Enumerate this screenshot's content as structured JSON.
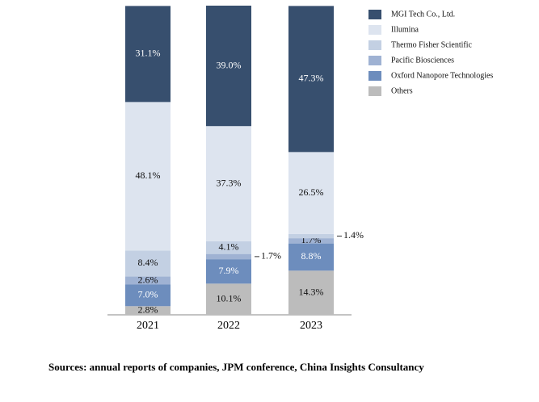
{
  "chart_data": {
    "type": "stacked_bar",
    "categories": [
      "2021",
      "2022",
      "2023"
    ],
    "series": [
      {
        "name": "MGI Tech Co., Ltd.",
        "color": "#374f6e",
        "label_color": "#ffffff",
        "values": [
          31.1,
          39.0,
          47.3
        ],
        "value_labels": [
          "31.1%",
          "39.0%",
          "47.3%"
        ]
      },
      {
        "name": "Illumina",
        "color": "#dde4ef",
        "label_color": "#111111",
        "values": [
          48.1,
          37.3,
          26.5
        ],
        "value_labels": [
          "48.1%",
          "37.3%",
          "26.5%"
        ]
      },
      {
        "name": "Thermo Fisher Scientific",
        "color": "#c3d0e3",
        "label_color": "#111111",
        "values": [
          8.4,
          4.1,
          1.4
        ],
        "value_labels": [
          "8.4%",
          "4.1%",
          "1.4%"
        ]
      },
      {
        "name": "Pacific Biosciences",
        "color": "#9fb2d3",
        "label_color": "#111111",
        "values": [
          2.6,
          1.7,
          1.7
        ],
        "value_labels": [
          "2.6%",
          "1.7%",
          "1.7%"
        ]
      },
      {
        "name": "Oxford Nanopore Technologies",
        "color": "#6d8dbd",
        "label_color": "#ffffff",
        "values": [
          7.0,
          7.9,
          8.8
        ],
        "value_labels": [
          "7.0%",
          "7.9%",
          "8.8%"
        ]
      },
      {
        "name": "Others",
        "color": "#bcbcbc",
        "label_color": "#111111",
        "values": [
          2.8,
          10.1,
          14.3
        ],
        "value_labels": [
          "2.8%",
          "10.1%",
          "14.3%"
        ]
      }
    ],
    "legend": "right",
    "source": "Sources:  annual reports of companies, JPM conference, China Insights Consultancy"
  }
}
